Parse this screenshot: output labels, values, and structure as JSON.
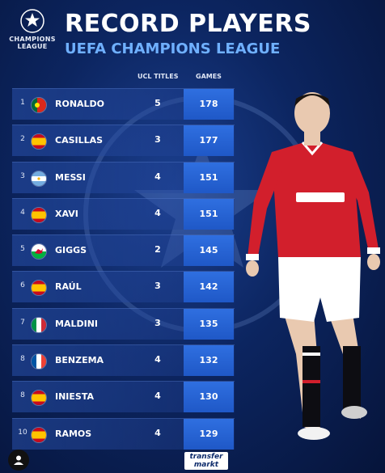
{
  "header": {
    "logo_line1": "CHAMPIONS",
    "logo_line2": "LEAGUE",
    "title": "RECORD PLAYERS",
    "subtitle": "UEFA CHAMPIONS LEAGUE"
  },
  "columns": {
    "titles": "UCL TITLES",
    "games": "GAMES"
  },
  "players": [
    {
      "rank": "1",
      "name": "RONALDO",
      "country": "portugal",
      "titles": "5",
      "games": "178"
    },
    {
      "rank": "2",
      "name": "CASILLAS",
      "country": "spain",
      "titles": "3",
      "games": "177"
    },
    {
      "rank": "3",
      "name": "MESSI",
      "country": "argentina",
      "titles": "4",
      "games": "151"
    },
    {
      "rank": "4",
      "name": "XAVI",
      "country": "spain",
      "titles": "4",
      "games": "151"
    },
    {
      "rank": "5",
      "name": "GIGGS",
      "country": "wales",
      "titles": "2",
      "games": "145"
    },
    {
      "rank": "6",
      "name": "RAÚL",
      "country": "spain",
      "titles": "3",
      "games": "142"
    },
    {
      "rank": "7",
      "name": "MALDINI",
      "country": "italy",
      "titles": "3",
      "games": "135"
    },
    {
      "rank": "8",
      "name": "BENZEMA",
      "country": "france",
      "titles": "4",
      "games": "132"
    },
    {
      "rank": "8",
      "name": "INIESTA",
      "country": "spain",
      "titles": "4",
      "games": "130"
    },
    {
      "rank": "10",
      "name": "RAMOS",
      "country": "spain",
      "titles": "4",
      "games": "129"
    }
  ],
  "footer": {
    "logo_line1": "transfer",
    "logo_line2": "markt"
  },
  "colors": {
    "background": "#0c2560",
    "games_cell": "#2f6fe0",
    "subtitle": "#6fb0ff"
  },
  "icons": {
    "logo": "champions-league-starball-icon",
    "avatar": "user-avatar-icon"
  }
}
